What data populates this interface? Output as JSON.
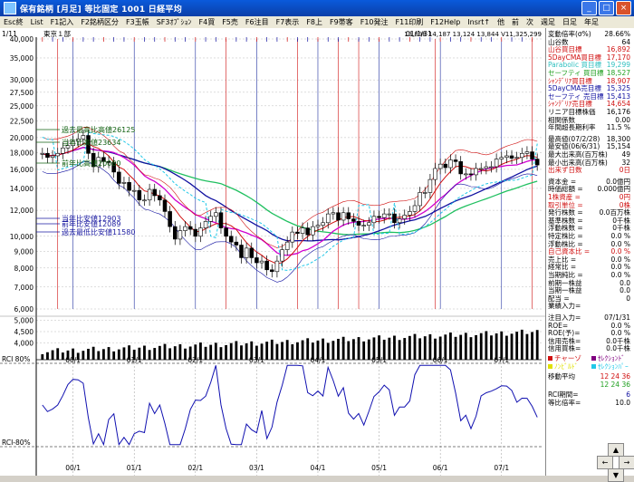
{
  "window": {
    "title": "保有銘柄 [月足] 等比固定  1001  日経平均"
  },
  "menu": [
    "Esc終",
    "List",
    "F1記入",
    "F2銘柄区分",
    "F3玉帳",
    "SF3ｵﾌﾟｼｮﾝ",
    "F4買",
    "F5売",
    "F6注目",
    "F7表示",
    "F8上",
    "F9帯客",
    "F10発注",
    "F11印刷",
    "F12Help",
    "Insrt↑",
    "他",
    "前",
    "次",
    "週足",
    "日足",
    "年足"
  ],
  "header": {
    "left_date": "1/11",
    "market": "東京１部",
    "right_date": "01/1/31",
    "values": "13,898  14,187  13,124  13,844  V11,325,299"
  },
  "price_axis": [
    40000,
    35000,
    30000,
    27500,
    25000,
    22500,
    20000,
    18000,
    16000,
    14000,
    12000,
    10000,
    9000,
    8000,
    7000,
    6000
  ],
  "volume_axis": [
    5000,
    4500,
    4000
  ],
  "rci_labels": {
    "top": "RCI 80%",
    "bottom": "RCI-80%"
  },
  "annotations": [
    {
      "text": "過去最高比高値26125",
      "color": "#106010"
    },
    {
      "text": "当年比高値23634",
      "color": "#106010"
    },
    {
      "text": "前年比高値20080",
      "color": "#106010"
    },
    {
      "text": "当年比安値12903",
      "color": "#1a1aa0"
    },
    {
      "text": "前年比安値12089",
      "color": "#1a1aa0"
    },
    {
      "text": "過去最低比安値11580",
      "color": "#1a1aa0"
    }
  ],
  "x_labels": [
    "00/1",
    "01/1",
    "02/1",
    "03/1",
    "04/1",
    "05/1",
    "06/1",
    "07/1"
  ],
  "colors": {
    "candle_up": "#ffffff",
    "candle_down": "#000000",
    "ma_red": "#d01010",
    "ma_blue": "#1010a0",
    "ma_green": "#20c060",
    "ma_magenta": "#d000d0",
    "ma_cyan": "#20c8e8",
    "rci": "#1010b0",
    "volume": "#000000"
  },
  "panel": {
    "rows": [
      {
        "k": "変動倍率(σ%)",
        "v": "28.66%",
        "c": "#000"
      },
      {
        "k": "山谷数",
        "v": "64",
        "c": "#000"
      },
      {
        "k": "山谷買目標",
        "v": "16,892",
        "c": "#d01010"
      },
      {
        "k": "5DayCMA買目標",
        "v": "17,170",
        "c": "#d01010"
      },
      {
        "k": "Parabolic 買目標",
        "v": "19,299",
        "c": "#30c0c0"
      },
      {
        "k": "セーフティ 買目標",
        "v": "18,527",
        "c": "#20a020"
      },
      {
        "k": "ｼｬﾝﾃﾞﾘｱ買目標",
        "v": "18,907",
        "c": "#d01010"
      },
      {
        "k": "5DayCMA売目標",
        "v": "15,325",
        "c": "#1010a0"
      },
      {
        "k": "セーフティ 売目標",
        "v": "15,413",
        "c": "#1010a0"
      },
      {
        "k": "ｼｬﾝﾃﾞﾘｱ売目標",
        "v": "14,654",
        "c": "#d01010"
      },
      {
        "k": "リニア目標株価",
        "v": "16,176",
        "c": "#000"
      },
      {
        "k": "相関係数",
        "v": "0.00",
        "c": "#000"
      },
      {
        "k": "年間超長期利率",
        "v": "11.5 %",
        "c": "#000"
      },
      {
        "k": "",
        "v": "",
        "c": "#000"
      },
      {
        "k": "最高値(07/2/28)",
        "v": "18,300",
        "c": "#000"
      },
      {
        "k": "最安値(06/6/31)",
        "v": "15,154",
        "c": "#000"
      },
      {
        "k": "最大出来高(百万株)",
        "v": "49",
        "c": "#000"
      },
      {
        "k": "最小出来高(百万株)",
        "v": "32",
        "c": "#000"
      },
      {
        "k": "出来ず日数",
        "v": "0日",
        "c": "#d01010"
      },
      {
        "k": "",
        "v": "",
        "c": "#000"
      },
      {
        "k": "資本金 =",
        "v": "0.0億円",
        "c": "#000"
      },
      {
        "k": "時価総額 =",
        "v": "0.000億円",
        "c": "#000"
      },
      {
        "k": "1株資産 =",
        "v": "0円",
        "c": "#d01010"
      },
      {
        "k": "取引単位 =",
        "v": "0株",
        "c": "#d01010"
      },
      {
        "k": "発行株数 =",
        "v": "0.0百万株",
        "c": "#000"
      },
      {
        "k": "基準株数 =",
        "v": "0千株",
        "c": "#000"
      },
      {
        "k": "浮動株数 =",
        "v": "0千株",
        "c": "#000"
      },
      {
        "k": "特定株比 =",
        "v": "0.0 %",
        "c": "#000"
      },
      {
        "k": "浮動株比 =",
        "v": "0.0 %",
        "c": "#000"
      },
      {
        "k": "自己資本比 =",
        "v": "0.0 %",
        "c": "#d01010"
      },
      {
        "k": "売上比 =",
        "v": "0.0 %",
        "c": "#000"
      },
      {
        "k": "経常比 =",
        "v": "0.0 %",
        "c": "#000"
      },
      {
        "k": "当期純比 =",
        "v": "0.0 %",
        "c": "#000"
      },
      {
        "k": "前期一株益",
        "v": "0.0",
        "c": "#000"
      },
      {
        "k": "当期一株益",
        "v": "0.0",
        "c": "#000"
      },
      {
        "k": "配当 =",
        "v": "0",
        "c": "#000"
      },
      {
        "k": "業績入力=",
        "v": "",
        "c": "#000"
      },
      {
        "k": "",
        "v": "",
        "c": "#000"
      },
      {
        "k": "注目入力=",
        "v": "07/1/31",
        "c": "#000"
      },
      {
        "k": "ROE=",
        "v": "0.0 %",
        "c": "#000"
      },
      {
        "k": "ROE(予)=",
        "v": "0.0 %",
        "c": "#000"
      },
      {
        "k": "信用売株=",
        "v": "0.0千株",
        "c": "#000"
      },
      {
        "k": "信用買株=",
        "v": "0.0千株",
        "c": "#000"
      }
    ],
    "legend": [
      {
        "label": "チャーゾ",
        "color": "#d01010"
      },
      {
        "label": "ｾﾚｸｼｮﾝﾄﾞ",
        "color": "#800080"
      },
      {
        "label": "ﾉﾝﾋﾞﾙﾄﾞ",
        "color": "#e0e000"
      },
      {
        "label": "ｾﾚｸｼｮﾝﾊﾟｰ",
        "color": "#20c8e8"
      }
    ],
    "moving_avg": {
      "label": "移動平均",
      "v1": "12 24 36",
      "v2": "12 24 36"
    },
    "rci_period": {
      "label": "RCI期間=",
      "value": "6"
    },
    "ratio": {
      "label": "等比倍率=",
      "value": "10.0"
    }
  },
  "chart_data": {
    "type": "candlestick",
    "x": [
      "99/7",
      "99/8",
      "99/9",
      "99/10",
      "99/11",
      "99/12",
      "00/1",
      "00/2",
      "00/3",
      "00/4",
      "00/5",
      "00/6",
      "00/7",
      "00/8",
      "00/9",
      "00/10",
      "00/11",
      "00/12",
      "01/1",
      "01/2",
      "01/3",
      "01/4",
      "01/5",
      "01/6",
      "01/7",
      "01/8",
      "01/9",
      "01/10",
      "01/11",
      "01/12",
      "02/1",
      "02/2",
      "02/3",
      "02/4",
      "02/5",
      "02/6",
      "02/7",
      "02/8",
      "02/9",
      "02/10",
      "02/11",
      "02/12",
      "03/1",
      "03/2",
      "03/3",
      "03/4",
      "03/5",
      "03/6",
      "03/7",
      "03/8",
      "03/9",
      "03/10",
      "03/11",
      "03/12",
      "04/1",
      "04/2",
      "04/3",
      "04/4",
      "04/5",
      "04/6",
      "04/7",
      "04/8",
      "04/9",
      "04/10",
      "04/11",
      "04/12",
      "05/1",
      "05/2",
      "05/3",
      "05/4",
      "05/5",
      "05/6",
      "05/7",
      "05/8",
      "05/9",
      "05/10",
      "05/11",
      "05/12",
      "06/1",
      "06/2",
      "06/3",
      "06/4",
      "06/5",
      "06/6",
      "06/7",
      "06/8",
      "06/9",
      "06/10",
      "06/11",
      "06/12",
      "07/1",
      "07/2",
      "07/3",
      "07/4",
      "07/5",
      "07/6",
      "07/7",
      "07/8"
    ],
    "series": [
      {
        "name": "close",
        "values": [
          17900,
          17400,
          17600,
          17900,
          18600,
          18900,
          19500,
          19800,
          20300,
          17900,
          16300,
          17400,
          16900,
          16800,
          15700,
          14500,
          14600,
          13800,
          13800,
          12900,
          12900,
          13900,
          13300,
          12900,
          11900,
          10700,
          9800,
          10400,
          10700,
          10500,
          10000,
          10600,
          11100,
          11500,
          11800,
          10600,
          10000,
          9600,
          9400,
          8600,
          9200,
          8600,
          8300,
          8400,
          7900,
          7800,
          8400,
          9100,
          9600,
          10300,
          10200,
          10600,
          10100,
          10700,
          10800,
          11000,
          11700,
          11800,
          11200,
          11800,
          11300,
          11100,
          10800,
          10800,
          11000,
          11500,
          11400,
          11700,
          11700,
          11000,
          11300,
          11600,
          11900,
          12400,
          13600,
          13600,
          14900,
          16100,
          16600,
          16200,
          17100,
          16900,
          15500,
          15500,
          15400,
          16100,
          16100,
          16300,
          16300,
          17200,
          17400,
          17600,
          17300,
          17400,
          17900,
          18100,
          17200,
          16500
        ]
      }
    ],
    "ylim": [
      6000,
      40000
    ],
    "scale": "log"
  }
}
